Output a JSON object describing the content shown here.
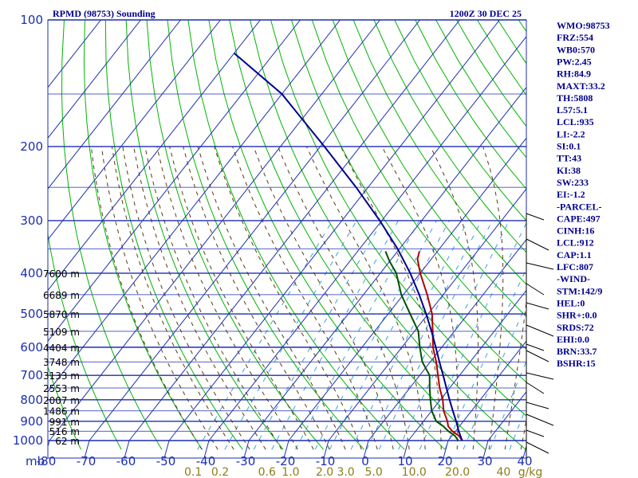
{
  "chart_data": {
    "type": "line",
    "title_left": "RPMD (98753) Sounding",
    "title_right": "1200Z 30 DEC 25",
    "xlabel": "",
    "ylabel": "",
    "x_axis_unit_prefix": "mb",
    "ylim": [
      1000,
      100
    ],
    "y_scale": "log",
    "xlim": [
      -80,
      40
    ],
    "pressure_ticks": [
      100,
      200,
      300,
      400,
      500,
      600,
      700,
      800,
      900,
      1000
    ],
    "temperature_ticks": [
      -80,
      -70,
      -60,
      -50,
      -40,
      -30,
      -20,
      -10,
      0,
      10,
      20,
      30,
      40
    ],
    "mixing_ratio_labels": [
      "0.1",
      "0.2",
      "0.6",
      "1.0",
      "2.0",
      "3.0",
      "5.0",
      "10.0",
      "20.0",
      "40",
      "g/kg"
    ],
    "height_labels": [
      {
        "p": 400,
        "text": "7600 m"
      },
      {
        "p": 450,
        "text": "6689 m"
      },
      {
        "p": 500,
        "text": "5870 m"
      },
      {
        "p": 550,
        "text": "5109 m"
      },
      {
        "p": 600,
        "text": "4404 m"
      },
      {
        "p": 650,
        "text": "3748 m"
      },
      {
        "p": 700,
        "text": "3133 m"
      },
      {
        "p": 750,
        "text": "2553 m"
      },
      {
        "p": 800,
        "text": "2007 m"
      },
      {
        "p": 850,
        "text": "1486 m"
      },
      {
        "p": 900,
        "text": "991 m"
      },
      {
        "p": 950,
        "text": "516 m"
      },
      {
        "p": 1000,
        "text": "62 m"
      }
    ],
    "series": [
      {
        "color": "#b00000",
        "points": [
          [
            1000,
            23.5
          ],
          [
            975,
            21.8
          ],
          [
            950,
            19.2
          ],
          [
            925,
            17.2
          ],
          [
            900,
            16.0
          ],
          [
            850,
            13.0
          ],
          [
            800,
            10.6
          ],
          [
            750,
            7.5
          ],
          [
            700,
            4.6
          ],
          [
            650,
            1.5
          ],
          [
            600,
            -2.2
          ],
          [
            550,
            -5.4
          ],
          [
            500,
            -9.0
          ],
          [
            450,
            -14.0
          ],
          [
            400,
            -20.0
          ],
          [
            370,
            -23.5
          ],
          [
            355,
            -24.5
          ]
        ]
      },
      {
        "color": "#005000",
        "points": [
          [
            1000,
            22.5
          ],
          [
            975,
            20.8
          ],
          [
            950,
            18.2
          ],
          [
            925,
            16.0
          ],
          [
            900,
            13.2
          ],
          [
            850,
            10.0
          ],
          [
            800,
            7.5
          ],
          [
            750,
            5.0
          ],
          [
            700,
            2.5
          ],
          [
            650,
            -2.0
          ],
          [
            600,
            -5.5
          ],
          [
            550,
            -9.0
          ],
          [
            500,
            -14.5
          ],
          [
            450,
            -20.5
          ],
          [
            400,
            -26.0
          ],
          [
            375,
            -30.0
          ],
          [
            355,
            -33.0
          ]
        ]
      },
      {
        "color": "#00008b",
        "points": [
          [
            1000,
            23.5
          ],
          [
            950,
            20.8
          ],
          [
            900,
            18.2
          ],
          [
            850,
            15.3
          ],
          [
            800,
            12.3
          ],
          [
            750,
            9.2
          ],
          [
            700,
            5.9
          ],
          [
            650,
            2.3
          ],
          [
            600,
            -1.5
          ],
          [
            550,
            -5.7
          ],
          [
            500,
            -10.5
          ],
          [
            450,
            -16.0
          ],
          [
            400,
            -22.5
          ],
          [
            350,
            -30.5
          ],
          [
            300,
            -40.5
          ],
          [
            250,
            -53.0
          ],
          [
            200,
            -69.0
          ],
          [
            150,
            -90.0
          ],
          [
            120,
            -110.0
          ]
        ]
      }
    ],
    "grid": true
  },
  "indices": [
    "WMO:98753",
    "FRZ:554",
    "WB0:570",
    "PW:2.45",
    "RH:84.9",
    "MAXT:33.2",
    "TH:5808",
    "L57:5.1",
    "LCL:935",
    "LI:-2.2",
    "SI:0.1",
    "TT:43",
    "KI:38",
    "SW:233",
    "EI:-1.2",
    "-PARCEL-",
    "CAPE:497",
    "CINH:16",
    "LCL:912",
    "CAP:1.1",
    "LFC:807",
    "-WIND-",
    "STM:142/9",
    "HEL:0",
    "SHR+:0.0",
    "SRDS:72",
    "EHI:0.0",
    "BRN:33.7",
    "BSHR:15"
  ],
  "colors": {
    "grid": "#1c2fb0",
    "dry_adiabat": "#00b400",
    "moist_adiabat": "#5a3a10",
    "mixing_ratio": "#3aa0e0",
    "parcel": "#00008b",
    "temperature": "#b00000",
    "dewpoint": "#005000"
  }
}
